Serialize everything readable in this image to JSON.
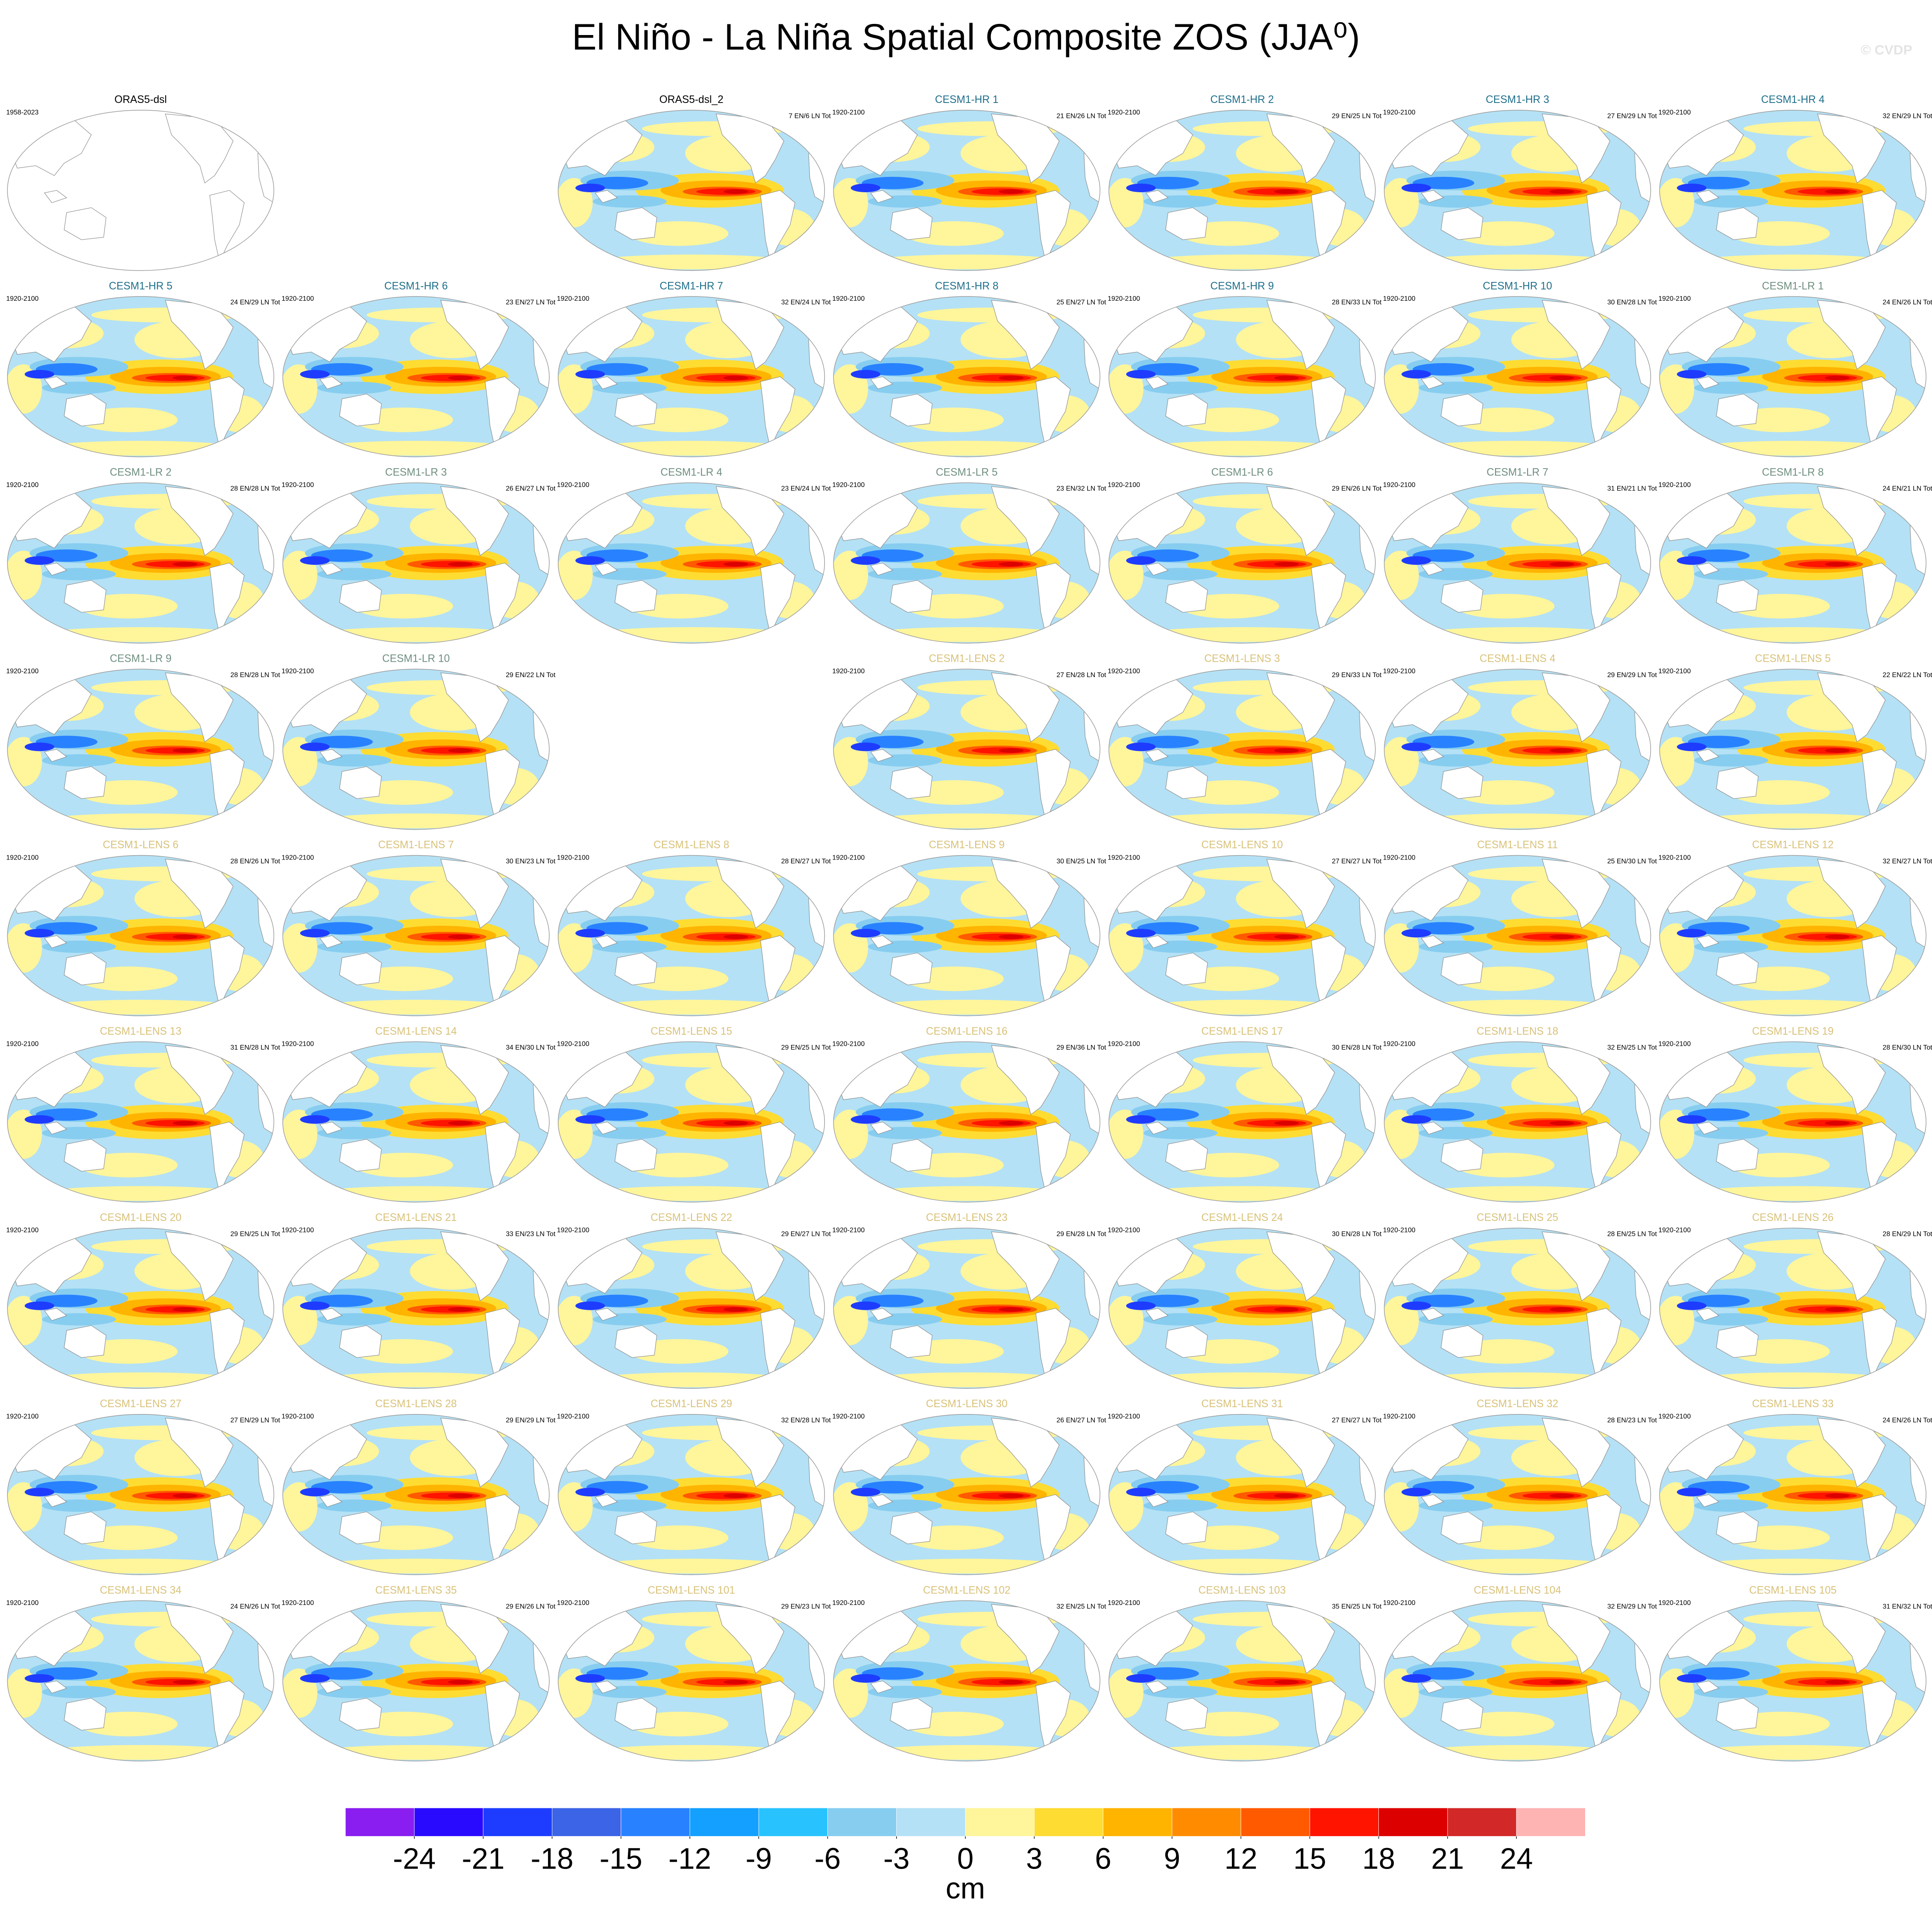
{
  "title": "El Niño - La Niña Spatial Composite ZOS (JJA⁰)",
  "credit": "© CVDP",
  "panels": [
    {
      "title": "ORAS5-dsl",
      "period": "1958-2023",
      "color": "#000000",
      "filled": false
    },
    null,
    {
      "title": "ORAS5-dsl_2",
      "count": "7 EN/6 LN Tot",
      "color": "#000000"
    },
    {
      "title": "CESM1-HR 1",
      "period": "1920-2100",
      "count": "21 EN/26 LN Tot",
      "color": "#1f6f8b"
    },
    {
      "title": "CESM1-HR 2",
      "period": "1920-2100",
      "count": "29 EN/25 LN Tot",
      "color": "#1f6f8b"
    },
    {
      "title": "CESM1-HR 3",
      "period": "1920-2100",
      "count": "27 EN/29 LN Tot",
      "color": "#1f6f8b"
    },
    {
      "title": "CESM1-HR 4",
      "period": "1920-2100",
      "count": "32 EN/29 LN Tot",
      "color": "#1f6f8b"
    },
    {
      "title": "CESM1-HR 5",
      "period": "1920-2100",
      "count": "24 EN/29 LN Tot",
      "color": "#1f6f8b"
    },
    {
      "title": "CESM1-HR 6",
      "period": "1920-2100",
      "count": "23 EN/27 LN Tot",
      "color": "#1f6f8b"
    },
    {
      "title": "CESM1-HR 7",
      "period": "1920-2100",
      "count": "32 EN/24 LN Tot",
      "color": "#1f6f8b"
    },
    {
      "title": "CESM1-HR 8",
      "period": "1920-2100",
      "count": "25 EN/27 LN Tot",
      "color": "#1f6f8b"
    },
    {
      "title": "CESM1-HR 9",
      "period": "1920-2100",
      "count": "28 EN/33 LN Tot",
      "color": "#1f6f8b"
    },
    {
      "title": "CESM1-HR 10",
      "period": "1920-2100",
      "count": "30 EN/28 LN Tot",
      "color": "#1f6f8b"
    },
    {
      "title": "CESM1-LR 1",
      "period": "1920-2100",
      "count": "24 EN/26 LN Tot",
      "color": "#6f8f7f"
    },
    {
      "title": "CESM1-LR 2",
      "period": "1920-2100",
      "count": "28 EN/28 LN Tot",
      "color": "#6f8f7f"
    },
    {
      "title": "CESM1-LR 3",
      "period": "1920-2100",
      "count": "26 EN/27 LN Tot",
      "color": "#6f8f7f"
    },
    {
      "title": "CESM1-LR 4",
      "period": "1920-2100",
      "count": "23 EN/24 LN Tot",
      "color": "#6f8f7f"
    },
    {
      "title": "CESM1-LR 5",
      "period": "1920-2100",
      "count": "23 EN/32 LN Tot",
      "color": "#6f8f7f"
    },
    {
      "title": "CESM1-LR 6",
      "period": "1920-2100",
      "count": "29 EN/26 LN Tot",
      "color": "#6f8f7f"
    },
    {
      "title": "CESM1-LR 7",
      "period": "1920-2100",
      "count": "31 EN/21 LN Tot",
      "color": "#6f8f7f"
    },
    {
      "title": "CESM1-LR 8",
      "period": "1920-2100",
      "count": "24 EN/21 LN Tot",
      "color": "#6f8f7f"
    },
    {
      "title": "CESM1-LR 9",
      "period": "1920-2100",
      "count": "28 EN/28 LN Tot",
      "color": "#6f8f7f"
    },
    {
      "title": "CESM1-LR 10",
      "period": "1920-2100",
      "count": "29 EN/22 LN Tot",
      "color": "#6f8f7f"
    },
    null,
    {
      "title": "CESM1-LENS 2",
      "period": "1920-2100",
      "count": "27 EN/28 LN Tot",
      "color": "#d9c27a"
    },
    {
      "title": "CESM1-LENS 3",
      "period": "1920-2100",
      "count": "29 EN/33 LN Tot",
      "color": "#d9c27a"
    },
    {
      "title": "CESM1-LENS 4",
      "period": "1920-2100",
      "count": "29 EN/29 LN Tot",
      "color": "#d9c27a"
    },
    {
      "title": "CESM1-LENS 5",
      "period": "1920-2100",
      "count": "22 EN/22 LN Tot",
      "color": "#d9c27a"
    },
    {
      "title": "CESM1-LENS 6",
      "period": "1920-2100",
      "count": "28 EN/26 LN Tot",
      "color": "#d9c27a"
    },
    {
      "title": "CESM1-LENS 7",
      "period": "1920-2100",
      "count": "30 EN/23 LN Tot",
      "color": "#d9c27a"
    },
    {
      "title": "CESM1-LENS 8",
      "period": "1920-2100",
      "count": "28 EN/27 LN Tot",
      "color": "#d9c27a"
    },
    {
      "title": "CESM1-LENS 9",
      "period": "1920-2100",
      "count": "30 EN/25 LN Tot",
      "color": "#d9c27a"
    },
    {
      "title": "CESM1-LENS 10",
      "period": "1920-2100",
      "count": "27 EN/27 LN Tot",
      "color": "#d9c27a"
    },
    {
      "title": "CESM1-LENS 11",
      "period": "1920-2100",
      "count": "25 EN/30 LN Tot",
      "color": "#d9c27a"
    },
    {
      "title": "CESM1-LENS 12",
      "period": "1920-2100",
      "count": "32 EN/27 LN Tot",
      "color": "#d9c27a"
    },
    {
      "title": "CESM1-LENS 13",
      "period": "1920-2100",
      "count": "31 EN/28 LN Tot",
      "color": "#d9c27a"
    },
    {
      "title": "CESM1-LENS 14",
      "period": "1920-2100",
      "count": "34 EN/30 LN Tot",
      "color": "#d9c27a"
    },
    {
      "title": "CESM1-LENS 15",
      "period": "1920-2100",
      "count": "29 EN/25 LN Tot",
      "color": "#d9c27a"
    },
    {
      "title": "CESM1-LENS 16",
      "period": "1920-2100",
      "count": "29 EN/36 LN Tot",
      "color": "#d9c27a"
    },
    {
      "title": "CESM1-LENS 17",
      "period": "1920-2100",
      "count": "30 EN/28 LN Tot",
      "color": "#d9c27a"
    },
    {
      "title": "CESM1-LENS 18",
      "period": "1920-2100",
      "count": "32 EN/25 LN Tot",
      "color": "#d9c27a"
    },
    {
      "title": "CESM1-LENS 19",
      "period": "1920-2100",
      "count": "28 EN/30 LN Tot",
      "color": "#d9c27a"
    },
    {
      "title": "CESM1-LENS 20",
      "period": "1920-2100",
      "count": "29 EN/25 LN Tot",
      "color": "#d9c27a"
    },
    {
      "title": "CESM1-LENS 21",
      "period": "1920-2100",
      "count": "33 EN/23 LN Tot",
      "color": "#d9c27a"
    },
    {
      "title": "CESM1-LENS 22",
      "period": "1920-2100",
      "count": "29 EN/27 LN Tot",
      "color": "#d9c27a"
    },
    {
      "title": "CESM1-LENS 23",
      "period": "1920-2100",
      "count": "29 EN/28 LN Tot",
      "color": "#d9c27a"
    },
    {
      "title": "CESM1-LENS 24",
      "period": "1920-2100",
      "count": "30 EN/28 LN Tot",
      "color": "#d9c27a"
    },
    {
      "title": "CESM1-LENS 25",
      "period": "1920-2100",
      "count": "28 EN/25 LN Tot",
      "color": "#d9c27a"
    },
    {
      "title": "CESM1-LENS 26",
      "period": "1920-2100",
      "count": "28 EN/29 LN Tot",
      "color": "#d9c27a"
    },
    {
      "title": "CESM1-LENS 27",
      "period": "1920-2100",
      "count": "27 EN/29 LN Tot",
      "color": "#d9c27a"
    },
    {
      "title": "CESM1-LENS 28",
      "period": "1920-2100",
      "count": "29 EN/29 LN Tot",
      "color": "#d9c27a"
    },
    {
      "title": "CESM1-LENS 29",
      "period": "1920-2100",
      "count": "32 EN/28 LN Tot",
      "color": "#d9c27a"
    },
    {
      "title": "CESM1-LENS 30",
      "period": "1920-2100",
      "count": "26 EN/27 LN Tot",
      "color": "#d9c27a"
    },
    {
      "title": "CESM1-LENS 31",
      "period": "1920-2100",
      "count": "27 EN/27 LN Tot",
      "color": "#d9c27a"
    },
    {
      "title": "CESM1-LENS 32",
      "period": "1920-2100",
      "count": "28 EN/23 LN Tot",
      "color": "#d9c27a"
    },
    {
      "title": "CESM1-LENS 33",
      "period": "1920-2100",
      "count": "24 EN/26 LN Tot",
      "color": "#d9c27a"
    },
    {
      "title": "CESM1-LENS 34",
      "period": "1920-2100",
      "count": "24 EN/26 LN Tot",
      "color": "#d9c27a"
    },
    {
      "title": "CESM1-LENS 35",
      "period": "1920-2100",
      "count": "29 EN/26 LN Tot",
      "color": "#d9c27a"
    },
    {
      "title": "CESM1-LENS 101",
      "period": "1920-2100",
      "count": "29 EN/23 LN Tot",
      "color": "#d9c27a"
    },
    {
      "title": "CESM1-LENS 102",
      "period": "1920-2100",
      "count": "32 EN/25 LN Tot",
      "color": "#d9c27a"
    },
    {
      "title": "CESM1-LENS 103",
      "period": "1920-2100",
      "count": "35 EN/25 LN Tot",
      "color": "#d9c27a"
    },
    {
      "title": "CESM1-LENS 104",
      "period": "1920-2100",
      "count": "32 EN/29 LN Tot",
      "color": "#d9c27a"
    },
    {
      "title": "CESM1-LENS 105",
      "period": "1920-2100",
      "count": "31 EN/32 LN Tot",
      "color": "#d9c27a"
    }
  ],
  "colorbar": {
    "label": "cm",
    "ticks": [
      -24,
      -21,
      -18,
      -15,
      -12,
      -9,
      -6,
      -3,
      0,
      3,
      6,
      9,
      12,
      15,
      18,
      21,
      24
    ],
    "colors": [
      "#8a1ef0",
      "#2a0aff",
      "#1e3cff",
      "#3c64e6",
      "#2882ff",
      "#14a0ff",
      "#28c3ff",
      "#87cdf0",
      "#b4e1f5",
      "#fff59b",
      "#ffdc32",
      "#ffb400",
      "#ff8c00",
      "#ff5a00",
      "#ff1400",
      "#dc0000",
      "#d22828",
      "#ffb4b4"
    ]
  }
}
